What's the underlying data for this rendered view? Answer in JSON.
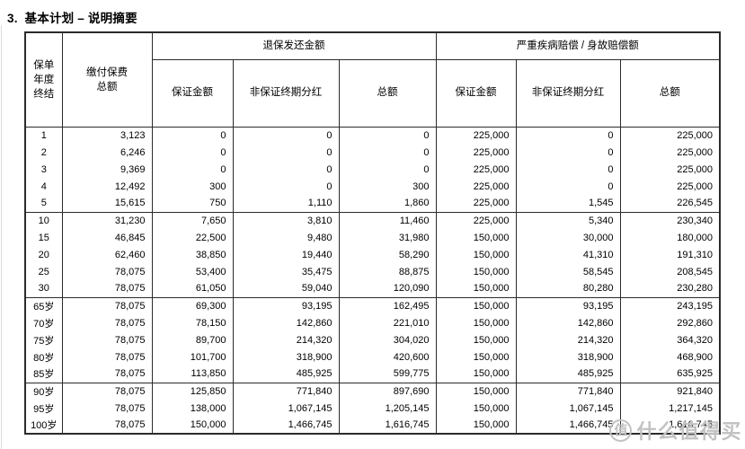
{
  "page": {
    "title": "3.  基本计划 – 说明摘要"
  },
  "table": {
    "header": {
      "policy_year": "保单\n年度\n终结",
      "premium_total": "缴付保费\n总额",
      "surrender_group": "退保发还金额",
      "benefit_group": "严重疾病赔偿 / 身故赔偿额",
      "sub": [
        "保证金额",
        "非保证终期分红",
        "总额"
      ]
    },
    "groups": [
      {
        "rows": [
          {
            "label": "1",
            "values": [
              "3,123",
              "0",
              "0",
              "0",
              "225,000",
              "0",
              "225,000"
            ]
          },
          {
            "label": "2",
            "values": [
              "6,246",
              "0",
              "0",
              "0",
              "225,000",
              "0",
              "225,000"
            ]
          },
          {
            "label": "3",
            "values": [
              "9,369",
              "0",
              "0",
              "0",
              "225,000",
              "0",
              "225,000"
            ]
          },
          {
            "label": "4",
            "values": [
              "12,492",
              "300",
              "0",
              "300",
              "225,000",
              "0",
              "225,000"
            ]
          },
          {
            "label": "5",
            "values": [
              "15,615",
              "750",
              "1,110",
              "1,860",
              "225,000",
              "1,545",
              "226,545"
            ]
          }
        ]
      },
      {
        "rows": [
          {
            "label": "10",
            "values": [
              "31,230",
              "7,650",
              "3,810",
              "11,460",
              "225,000",
              "5,340",
              "230,340"
            ]
          },
          {
            "label": "15",
            "values": [
              "46,845",
              "22,500",
              "9,480",
              "31,980",
              "150,000",
              "30,000",
              "180,000"
            ]
          },
          {
            "label": "20",
            "values": [
              "62,460",
              "38,850",
              "19,440",
              "58,290",
              "150,000",
              "41,310",
              "191,310"
            ]
          },
          {
            "label": "25",
            "values": [
              "78,075",
              "53,400",
              "35,475",
              "88,875",
              "150,000",
              "58,545",
              "208,545"
            ]
          },
          {
            "label": "30",
            "values": [
              "78,075",
              "61,050",
              "59,040",
              "120,090",
              "150,000",
              "80,280",
              "230,280"
            ]
          }
        ]
      },
      {
        "rows": [
          {
            "label": "65岁",
            "values": [
              "78,075",
              "69,300",
              "93,195",
              "162,495",
              "150,000",
              "93,195",
              "243,195"
            ]
          },
          {
            "label": "70岁",
            "values": [
              "78,075",
              "78,150",
              "142,860",
              "221,010",
              "150,000",
              "142,860",
              "292,860"
            ]
          },
          {
            "label": "75岁",
            "values": [
              "78,075",
              "89,700",
              "214,320",
              "304,020",
              "150,000",
              "214,320",
              "364,320"
            ]
          },
          {
            "label": "80岁",
            "values": [
              "78,075",
              "101,700",
              "318,900",
              "420,600",
              "150,000",
              "318,900",
              "468,900"
            ]
          },
          {
            "label": "85岁",
            "values": [
              "78,075",
              "113,850",
              "485,925",
              "599,775",
              "150,000",
              "485,925",
              "635,925"
            ]
          }
        ]
      },
      {
        "rows": [
          {
            "label": "90岁",
            "values": [
              "78,075",
              "125,850",
              "771,840",
              "897,690",
              "150,000",
              "771,840",
              "921,840"
            ]
          },
          {
            "label": "95岁",
            "values": [
              "78,075",
              "138,000",
              "1,067,145",
              "1,205,145",
              "150,000",
              "1,067,145",
              "1,217,145"
            ]
          },
          {
            "label": "100岁",
            "values": [
              "78,075",
              "150,000",
              "1,466,745",
              "1,616,745",
              "150,000",
              "1,466,745",
              "1,616,745"
            ]
          }
        ]
      }
    ]
  },
  "watermark": {
    "badge": "值",
    "text": "什么值得买"
  }
}
